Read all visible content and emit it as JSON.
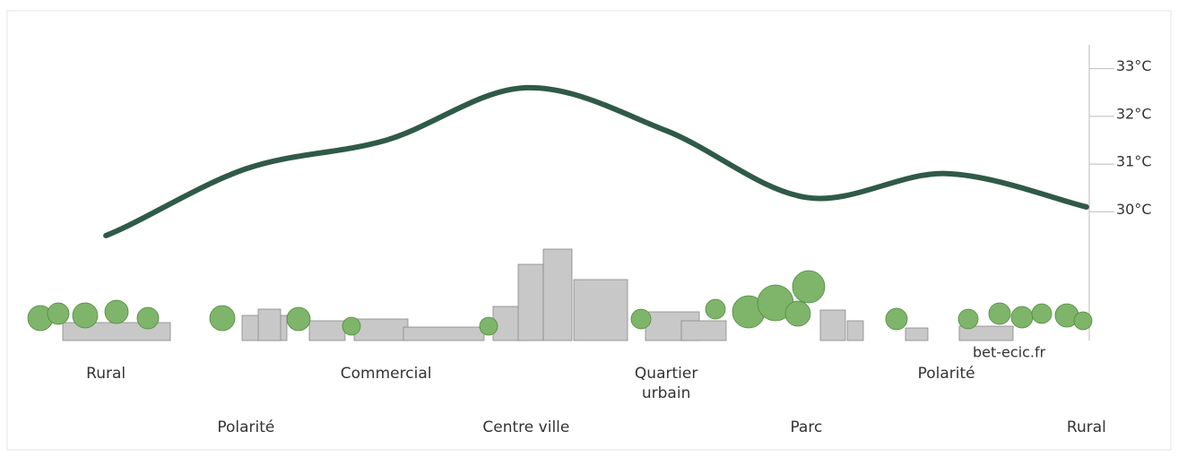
{
  "chart_data": {
    "type": "line",
    "categories": [
      "Rural",
      "Polarité",
      "Commercial",
      "Centre ville",
      "Quartier urbain",
      "Parc",
      "Polarité",
      "Rural"
    ],
    "series": [
      {
        "color": "#2f5a48",
        "values": [
          29.5,
          30.9,
          31.5,
          32.6,
          31.7,
          30.3,
          30.8,
          30.1
        ]
      }
    ],
    "ylim": [
      27.3,
      33.5
    ],
    "yticks": [
      {
        "value": 30,
        "label": "30°C"
      },
      {
        "value": 31,
        "label": "31°C"
      },
      {
        "value": 32,
        "label": "32°C"
      },
      {
        "value": 33,
        "label": "33°C"
      }
    ],
    "source": "bet-ecic.fr"
  }
}
